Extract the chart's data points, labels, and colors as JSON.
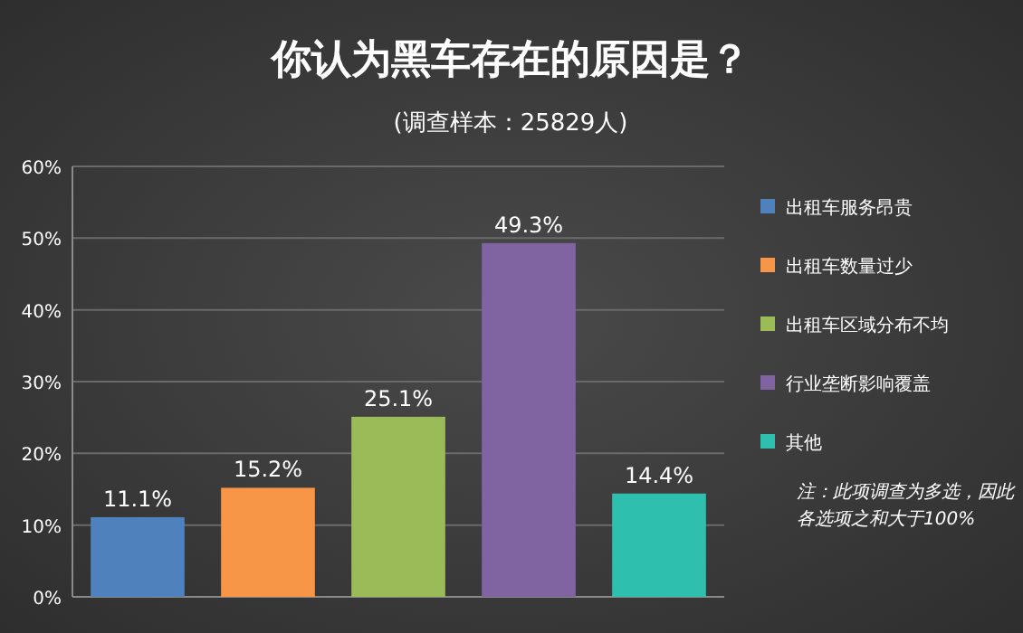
{
  "chart_data": {
    "type": "bar",
    "title": "你认为黑车存在的原因是？",
    "subtitle": "(调查样本：25829人)",
    "categories": [
      null,
      null,
      null,
      null,
      null
    ],
    "series": [
      {
        "name": "出租车服务昂贵",
        "color": "#4f81bd",
        "values": [
          11.1,
          null,
          null,
          null,
          null
        ]
      },
      {
        "name": "出租车数量过少",
        "color": "#f79646",
        "values": [
          null,
          15.2,
          null,
          null,
          null
        ]
      },
      {
        "name": "出租车区域分布不均",
        "color": "#9bbb59",
        "values": [
          null,
          null,
          25.1,
          null,
          null
        ]
      },
      {
        "name": "行业垄断影响覆盖",
        "color": "#8064a2",
        "values": [
          null,
          null,
          null,
          49.3,
          null
        ]
      },
      {
        "name": "其他",
        "color": "#2fbfae",
        "values": [
          null,
          null,
          null,
          null,
          14.4
        ]
      }
    ],
    "ylim": [
      0,
      60
    ],
    "yticks": [
      {
        "value": 0,
        "label": "0%"
      },
      {
        "value": 10,
        "label": "10%"
      },
      {
        "value": 20,
        "label": "20%"
      },
      {
        "value": 30,
        "label": "30%"
      },
      {
        "value": 40,
        "label": "40%"
      },
      {
        "value": 50,
        "label": "50%"
      },
      {
        "value": 60,
        "label": "60%"
      }
    ],
    "grid": "y",
    "legend": "right",
    "value_labels": [
      "11.1%",
      "15.2%",
      "25.1%",
      "49.3%",
      "14.4%"
    ],
    "annotations": [
      "注：此项调查为多选，因此各选项之和大于100%"
    ]
  }
}
